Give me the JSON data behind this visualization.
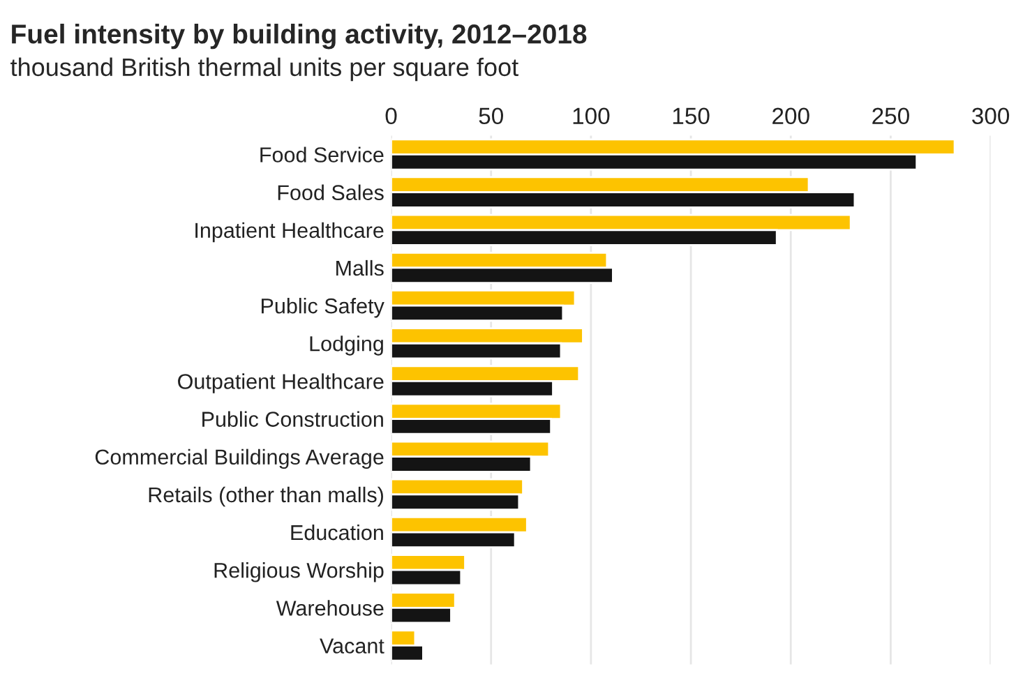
{
  "chart_data": {
    "type": "bar",
    "orientation": "horizontal",
    "title": "Fuel intensity by building activity, 2012–2018",
    "subtitle": "thousand British thermal units per square foot",
    "categories": [
      "Food Service",
      "Food Sales",
      "Inpatient Healthcare",
      "Malls",
      "Public Safety",
      "Lodging",
      "Outpatient Healthcare",
      "Public Construction",
      "Commercial Buildings Average",
      "Retails (other than malls)",
      "Education",
      "Religious Worship",
      "Warehouse",
      "Vacant"
    ],
    "series": [
      {
        "color": "#fdc300",
        "values": [
          282,
          209,
          230,
          108,
          92,
          96,
          94,
          85,
          79,
          66,
          68,
          37,
          32,
          12
        ]
      },
      {
        "color": "#141414",
        "values": [
          263,
          232,
          193,
          111,
          86,
          85,
          81,
          80,
          70,
          64,
          62,
          35,
          30,
          16
        ]
      }
    ],
    "xlim": [
      0,
      300
    ],
    "xticks": [
      0,
      50,
      100,
      150,
      200,
      250,
      300
    ],
    "grid": "x",
    "legend": false
  }
}
